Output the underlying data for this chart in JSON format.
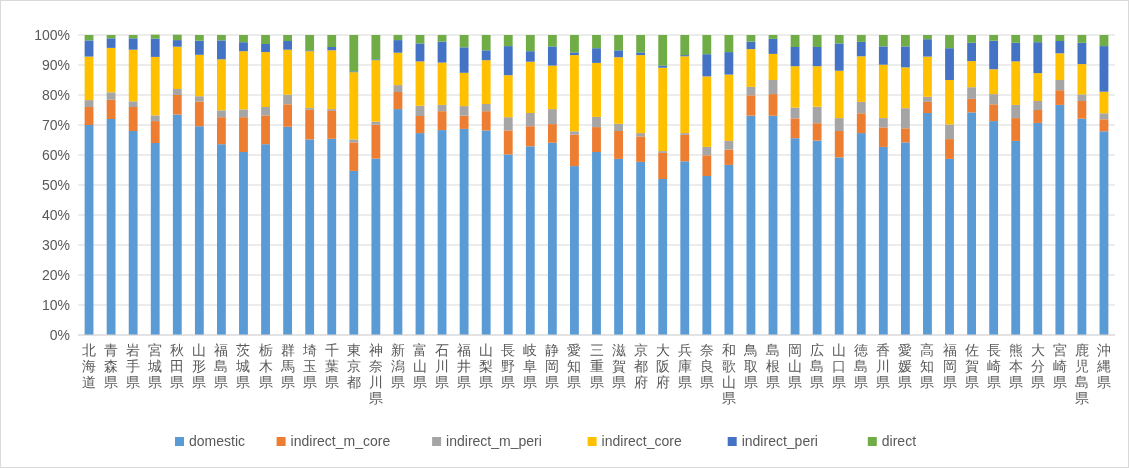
{
  "chart_data": {
    "type": "bar",
    "stacked": true,
    "grid": "y",
    "legend": "bottom",
    "categories": [
      "北海道",
      "青森県",
      "岩手県",
      "宮城県",
      "秋田県",
      "山形県",
      "福島県",
      "茨城県",
      "栃木県",
      "群馬県",
      "埼玉県",
      "千葉県",
      "東京都",
      "神奈川県",
      "新潟県",
      "富山県",
      "石川県",
      "福井県",
      "山梨県",
      "長野県",
      "岐阜県",
      "静岡県",
      "愛知県",
      "三重県",
      "滋賀県",
      "京都府",
      "大阪府",
      "兵庫県",
      "奈良県",
      "和歌山県",
      "鳥取県",
      "島根県",
      "岡山県",
      "広島県",
      "山口県",
      "徳島県",
      "香川県",
      "愛媛県",
      "高知県",
      "福岡県",
      "佐賀県",
      "長崎県",
      "熊本県",
      "大分県",
      "宮崎県",
      "鹿児島県",
      "沖縄県"
    ],
    "ylim": [
      0,
      100
    ],
    "yticks": [
      {
        "value": 0,
        "label": "0%"
      },
      {
        "value": 10,
        "label": "10%"
      },
      {
        "value": 20,
        "label": "20%"
      },
      {
        "value": 30,
        "label": "30%"
      },
      {
        "value": 40,
        "label": "40%"
      },
      {
        "value": 50,
        "label": "50%"
      },
      {
        "value": 60,
        "label": "60%"
      },
      {
        "value": 70,
        "label": "70%"
      },
      {
        "value": 80,
        "label": "80%"
      },
      {
        "value": 90,
        "label": "90%"
      },
      {
        "value": 100,
        "label": "100%"
      }
    ],
    "series": [
      {
        "name": "domestic",
        "color": "#5b9bd5",
        "values": [
          70,
          72,
          68,
          64,
          73.5,
          69.6,
          63.6,
          61,
          63.6,
          69.4,
          65.2,
          65.4,
          54.7,
          58.8,
          75.3,
          67.3,
          68.3,
          68.7,
          68.2,
          60.2,
          62.9,
          64.1,
          56.3,
          61,
          58.7,
          57.7,
          52,
          57.9,
          53,
          56.7,
          73.1,
          73.1,
          65.6,
          64.8,
          59.2,
          67.3,
          62.7,
          64.2,
          74,
          58.7,
          74.2,
          71.3,
          64.7,
          70.7,
          76.7,
          72.1,
          67.9
        ]
      },
      {
        "name": "indirect_m_core",
        "color": "#ed7d31",
        "values": [
          6,
          6.4,
          8,
          7.3,
          6.5,
          8.2,
          9,
          11.6,
          9.6,
          7.5,
          9.9,
          9.3,
          9.5,
          11.3,
          5.7,
          5.7,
          6.3,
          4.4,
          6.4,
          8,
          6.7,
          6.2,
          10.5,
          8.3,
          9.3,
          8.5,
          8.7,
          8.8,
          6.9,
          5.1,
          6.8,
          7.2,
          6.6,
          5.8,
          8.8,
          6.6,
          6.5,
          4.7,
          3.7,
          6.6,
          4.5,
          5.6,
          7.6,
          4.3,
          4.9,
          5.9,
          4
        ]
      },
      {
        "name": "indirect_m_peri",
        "color": "#a5a5a5",
        "values": [
          2.3,
          2.5,
          1.9,
          1.9,
          2,
          1.8,
          2.3,
          2.6,
          2.8,
          3.2,
          0.6,
          0.6,
          1,
          1,
          2.3,
          3.4,
          2.1,
          3.2,
          2.4,
          4.4,
          4.4,
          5,
          1.1,
          3.4,
          2.4,
          1.1,
          0.6,
          0.6,
          2.8,
          2.9,
          2.8,
          4.7,
          3.6,
          5.5,
          4.3,
          3.8,
          3.1,
          6.7,
          1.7,
          4.9,
          3.9,
          3.4,
          4.4,
          3,
          3.4,
          2.2,
          2
        ]
      },
      {
        "name": "indirect_core",
        "color": "#ffc000",
        "values": [
          14.5,
          14.8,
          17.2,
          19.5,
          14.1,
          13.8,
          17,
          19.4,
          18.3,
          15,
          18.9,
          19.6,
          22.4,
          20.5,
          10.8,
          14.8,
          14.1,
          11.1,
          14.6,
          14,
          17.1,
          14.5,
          25.4,
          18,
          22.2,
          26,
          27.8,
          25.6,
          23.5,
          22.1,
          12.6,
          8.7,
          13.8,
          13.5,
          15.8,
          15.2,
          17.8,
          13.6,
          13.4,
          14.8,
          8.7,
          8.3,
          14.5,
          9.3,
          8.9,
          10.1,
          7.2
        ]
      },
      {
        "name": "indirect_peri",
        "color": "#4472c4",
        "values": [
          5.4,
          3.2,
          3.8,
          6.1,
          2.2,
          4.7,
          6.3,
          3,
          2.7,
          2.9,
          0.3,
          1.1,
          0.3,
          0.3,
          4.2,
          6,
          7,
          8.5,
          3.3,
          9.7,
          3.5,
          6.4,
          0.9,
          4.9,
          2.3,
          0.9,
          0.7,
          0.4,
          7.4,
          7.5,
          2.5,
          5,
          6.4,
          6.4,
          9.1,
          4.8,
          6.1,
          7,
          5.8,
          10.6,
          6.1,
          9.5,
          6.2,
          10.3,
          4.1,
          7.1,
          15.2
        ]
      },
      {
        "name": "direct",
        "color": "#70ad47",
        "values": [
          1.8,
          1.1,
          1.1,
          1.3,
          1.8,
          1.9,
          1.8,
          2.4,
          3,
          2,
          5.1,
          4,
          12.1,
          8.1,
          1.7,
          2.8,
          2.2,
          4.1,
          5.1,
          3.7,
          5.4,
          3.8,
          5.8,
          4.4,
          5.1,
          5.8,
          10.2,
          6.7,
          6.4,
          5.7,
          2.2,
          1.3,
          4,
          4,
          2.8,
          2.3,
          3.8,
          3.8,
          1.4,
          4.4,
          2.6,
          1.9,
          2.6,
          2.4,
          2,
          2.6,
          3.7
        ]
      }
    ]
  }
}
